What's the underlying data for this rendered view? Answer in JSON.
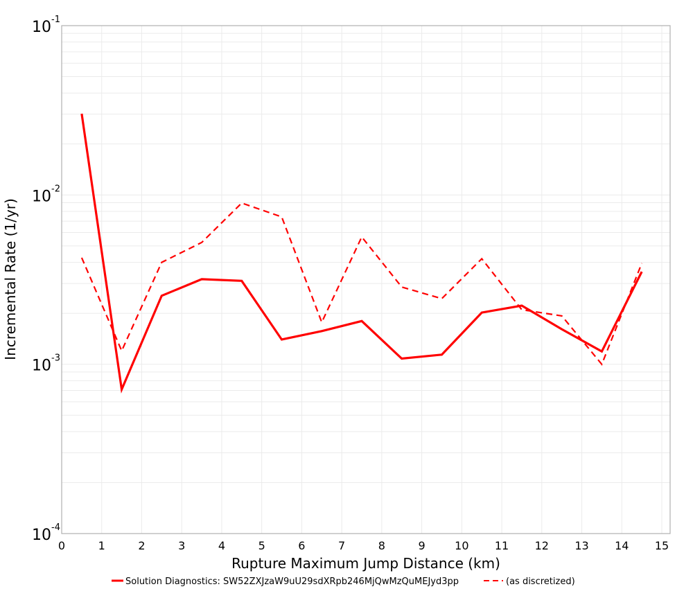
{
  "chart_data": {
    "type": "line",
    "title": "",
    "xlabel": "Rupture Maximum Jump Distance (km)",
    "ylabel": "Incremental Rate (1/yr)",
    "xlim": [
      0,
      15
    ],
    "ylim": [
      0.0001,
      0.1
    ],
    "yscale": "log",
    "grid": true,
    "legend_position": "bottom",
    "x_ticks": [
      "0",
      "1",
      "2",
      "3",
      "4",
      "5",
      "6",
      "7",
      "8",
      "9",
      "10",
      "11",
      "12",
      "13",
      "14",
      "15"
    ],
    "y_ticks": [
      {
        "base": "10",
        "exp": "-1",
        "value": 0.1
      },
      {
        "base": "10",
        "exp": "-2",
        "value": 0.01
      },
      {
        "base": "10",
        "exp": "-3",
        "value": 0.001
      },
      {
        "base": "10",
        "exp": "-4",
        "value": 0.0001
      }
    ],
    "x": [
      0.5,
      1.5,
      2.5,
      3.5,
      4.5,
      5.5,
      6.5,
      7.5,
      8.5,
      9.5,
      10.5,
      11.5,
      12.5,
      13.5,
      14.5
    ],
    "series": [
      {
        "name": "Solution Diagnostics: SW52ZXJzaW9uU29sdXRpb246MjQwMzQuMEJyd3pp",
        "color": "#ff0000",
        "style": "solid",
        "values": [
          0.0302,
          0.00071,
          0.00254,
          0.00318,
          0.00311,
          0.0014,
          0.00157,
          0.0018,
          0.00108,
          0.00114,
          0.00202,
          0.00222,
          0.00161,
          0.00119,
          0.00352
        ]
      },
      {
        "name": "(as discretized)",
        "color": "#ff0000",
        "style": "dashed",
        "values": [
          0.00426,
          0.0012,
          0.004,
          0.00524,
          0.00896,
          0.00742,
          0.00177,
          0.00565,
          0.00286,
          0.00244,
          0.0042,
          0.0021,
          0.00193,
          0.001,
          0.00395
        ]
      }
    ]
  }
}
